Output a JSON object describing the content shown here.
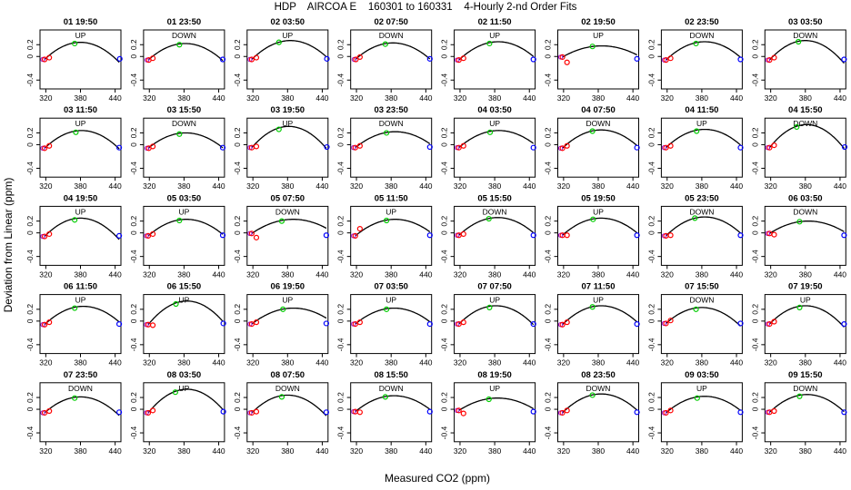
{
  "title": "HDP    AIRCOA E    160301 to 160331    4-Hourly 2-nd Order Fits",
  "xlabel": "Measured CO2 (ppm)",
  "ylabel": "Deviation from Linear (ppm)",
  "colors": {
    "curve": "#000000",
    "low_pt": "#ff0000",
    "mid_pt": "#00cc00",
    "high_pt": "#0000ff",
    "low_ref": "#9900cc",
    "box": "#000000"
  },
  "chart_data": {
    "type": "scatter",
    "xlim": [
      310,
      450
    ],
    "ylim": [
      -0.55,
      0.45
    ],
    "xticks": [
      320,
      380,
      440
    ],
    "xtick_labels": [
      "320",
      "380",
      "440"
    ],
    "yticks": [
      -0.4,
      0.0,
      0.2
    ],
    "ytick_labels": [
      "-0.4",
      "0",
      "0.2"
    ],
    "panels": [
      {
        "title": "01 19:50",
        "dir": "UP",
        "peak": 0.24,
        "vertex": 380,
        "pts": [
          [
            318,
            -0.05
          ],
          [
            326,
            -0.02
          ],
          [
            370,
            0.22
          ],
          [
            448,
            -0.04
          ]
        ]
      },
      {
        "title": "01 23:50",
        "dir": "DOWN",
        "peak": 0.22,
        "vertex": 382,
        "pts": [
          [
            319,
            -0.06
          ],
          [
            326,
            -0.03
          ],
          [
            372,
            0.2
          ],
          [
            447,
            -0.05
          ]
        ]
      },
      {
        "title": "02 03:50",
        "dir": "UP",
        "peak": 0.27,
        "vertex": 385,
        "pts": [
          [
            318,
            -0.05
          ],
          [
            326,
            -0.02
          ],
          [
            365,
            0.24
          ],
          [
            448,
            -0.04
          ]
        ]
      },
      {
        "title": "02 07:50",
        "dir": "DOWN",
        "peak": 0.23,
        "vertex": 383,
        "pts": [
          [
            319,
            -0.05
          ],
          [
            326,
            -0.01
          ],
          [
            370,
            0.21
          ],
          [
            447,
            -0.04
          ]
        ]
      },
      {
        "title": "02 11:50",
        "dir": "UP",
        "peak": 0.25,
        "vertex": 386,
        "pts": [
          [
            318,
            -0.06
          ],
          [
            326,
            -0.03
          ],
          [
            371,
            0.22
          ],
          [
            447,
            -0.05
          ]
        ]
      },
      {
        "title": "02 19:50",
        "dir": "UP",
        "peak": 0.18,
        "vertex": 386,
        "pts": [
          [
            318,
            -0.01
          ],
          [
            326,
            -0.1
          ],
          [
            370,
            0.17
          ],
          [
            447,
            -0.04
          ]
        ]
      },
      {
        "title": "02 23:50",
        "dir": "DOWN",
        "peak": 0.25,
        "vertex": 385,
        "pts": [
          [
            318,
            -0.06
          ],
          [
            326,
            -0.03
          ],
          [
            370,
            0.22
          ],
          [
            447,
            -0.05
          ]
        ]
      },
      {
        "title": "03 03:50",
        "dir": "DOWN",
        "peak": 0.27,
        "vertex": 380,
        "pts": [
          [
            318,
            -0.06
          ],
          [
            326,
            -0.02
          ],
          [
            368,
            0.25
          ],
          [
            447,
            -0.05
          ]
        ]
      },
      {
        "title": "03 11:50",
        "dir": "UP",
        "peak": 0.24,
        "vertex": 382,
        "pts": [
          [
            318,
            -0.06
          ],
          [
            326,
            -0.02
          ],
          [
            372,
            0.21
          ],
          [
            447,
            -0.05
          ]
        ]
      },
      {
        "title": "03 15:50",
        "dir": "DOWN",
        "peak": 0.2,
        "vertex": 383,
        "pts": [
          [
            319,
            -0.06
          ],
          [
            326,
            -0.03
          ],
          [
            372,
            0.18
          ],
          [
            447,
            -0.05
          ]
        ]
      },
      {
        "title": "03 19:50",
        "dir": "UP",
        "peak": 0.31,
        "vertex": 382,
        "pts": [
          [
            318,
            -0.05
          ],
          [
            326,
            -0.03
          ],
          [
            365,
            0.26
          ],
          [
            448,
            -0.04
          ]
        ]
      },
      {
        "title": "03 23:50",
        "dir": "DOWN",
        "peak": 0.22,
        "vertex": 387,
        "pts": [
          [
            318,
            -0.05
          ],
          [
            326,
            -0.02
          ],
          [
            372,
            0.2
          ],
          [
            447,
            -0.04
          ]
        ]
      },
      {
        "title": "04 03:50",
        "dir": "UP",
        "peak": 0.24,
        "vertex": 387,
        "pts": [
          [
            318,
            -0.05
          ],
          [
            326,
            -0.02
          ],
          [
            372,
            0.21
          ],
          [
            447,
            -0.05
          ]
        ]
      },
      {
        "title": "04 07:50",
        "dir": "DOWN",
        "peak": 0.25,
        "vertex": 385,
        "pts": [
          [
            318,
            -0.06
          ],
          [
            326,
            -0.02
          ],
          [
            370,
            0.23
          ],
          [
            447,
            -0.05
          ]
        ]
      },
      {
        "title": "04 11:50",
        "dir": "UP",
        "peak": 0.26,
        "vertex": 385,
        "pts": [
          [
            318,
            -0.05
          ],
          [
            326,
            -0.02
          ],
          [
            371,
            0.23
          ],
          [
            447,
            -0.05
          ]
        ]
      },
      {
        "title": "04 15:50",
        "dir": "DOWN",
        "peak": 0.34,
        "vertex": 382,
        "pts": [
          [
            318,
            -0.05
          ],
          [
            326,
            -0.01
          ],
          [
            365,
            0.3
          ],
          [
            448,
            -0.04
          ]
        ]
      },
      {
        "title": "04 19:50",
        "dir": "UP",
        "peak": 0.25,
        "vertex": 380,
        "pts": [
          [
            318,
            -0.06
          ],
          [
            326,
            -0.02
          ],
          [
            370,
            0.22
          ],
          [
            447,
            -0.05
          ]
        ]
      },
      {
        "title": "05 03:50",
        "dir": "UP",
        "peak": 0.23,
        "vertex": 384,
        "pts": [
          [
            318,
            -0.05
          ],
          [
            326,
            -0.02
          ],
          [
            372,
            0.21
          ],
          [
            447,
            -0.04
          ]
        ]
      },
      {
        "title": "05 07:50",
        "dir": "DOWN",
        "peak": 0.23,
        "vertex": 390,
        "pts": [
          [
            318,
            -0.01
          ],
          [
            326,
            -0.08
          ],
          [
            370,
            0.2
          ],
          [
            447,
            -0.04
          ]
        ]
      },
      {
        "title": "05 11:50",
        "dir": "UP",
        "peak": 0.23,
        "vertex": 387,
        "pts": [
          [
            318,
            -0.05
          ],
          [
            326,
            0.07
          ],
          [
            372,
            0.21
          ],
          [
            447,
            -0.04
          ]
        ]
      },
      {
        "title": "05 15:50",
        "dir": "DOWN",
        "peak": 0.26,
        "vertex": 385,
        "pts": [
          [
            318,
            -0.04
          ],
          [
            326,
            -0.02
          ],
          [
            370,
            0.24
          ],
          [
            447,
            -0.04
          ]
        ]
      },
      {
        "title": "05 19:50",
        "dir": "UP",
        "peak": 0.25,
        "vertex": 385,
        "pts": [
          [
            318,
            -0.04
          ],
          [
            326,
            -0.04
          ],
          [
            371,
            0.23
          ],
          [
            447,
            -0.04
          ]
        ]
      },
      {
        "title": "05 23:50",
        "dir": "DOWN",
        "peak": 0.27,
        "vertex": 385,
        "pts": [
          [
            318,
            -0.05
          ],
          [
            326,
            -0.04
          ],
          [
            368,
            0.25
          ],
          [
            447,
            -0.04
          ]
        ]
      },
      {
        "title": "06 03:50",
        "dir": "DOWN",
        "peak": 0.2,
        "vertex": 385,
        "pts": [
          [
            318,
            -0.01
          ],
          [
            326,
            -0.03
          ],
          [
            370,
            0.19
          ],
          [
            447,
            -0.04
          ]
        ]
      },
      {
        "title": "06 11:50",
        "dir": "UP",
        "peak": 0.25,
        "vertex": 385,
        "pts": [
          [
            318,
            -0.06
          ],
          [
            326,
            -0.02
          ],
          [
            370,
            0.22
          ],
          [
            447,
            -0.05
          ]
        ]
      },
      {
        "title": "06 15:50",
        "dir": "UP",
        "peak": 0.34,
        "vertex": 385,
        "pts": [
          [
            318,
            -0.06
          ],
          [
            326,
            -0.07
          ],
          [
            366,
            0.29
          ],
          [
            448,
            -0.04
          ]
        ]
      },
      {
        "title": "06 19:50",
        "dir": "UP",
        "peak": 0.22,
        "vertex": 390,
        "pts": [
          [
            318,
            -0.05
          ],
          [
            326,
            -0.02
          ],
          [
            372,
            0.2
          ],
          [
            447,
            -0.04
          ]
        ]
      },
      {
        "title": "07 03:50",
        "dir": "UP",
        "peak": 0.22,
        "vertex": 385,
        "pts": [
          [
            318,
            -0.05
          ],
          [
            326,
            -0.02
          ],
          [
            372,
            0.2
          ],
          [
            447,
            -0.05
          ]
        ]
      },
      {
        "title": "07 07:50",
        "dir": "UP",
        "peak": 0.26,
        "vertex": 382,
        "pts": [
          [
            318,
            -0.05
          ],
          [
            326,
            -0.02
          ],
          [
            371,
            0.23
          ],
          [
            447,
            -0.05
          ]
        ]
      },
      {
        "title": "07 11:50",
        "dir": "UP",
        "peak": 0.26,
        "vertex": 385,
        "pts": [
          [
            318,
            -0.06
          ],
          [
            326,
            -0.02
          ],
          [
            370,
            0.24
          ],
          [
            447,
            -0.05
          ]
        ]
      },
      {
        "title": "07 15:50",
        "dir": "DOWN",
        "peak": 0.23,
        "vertex": 380,
        "pts": [
          [
            318,
            -0.04
          ],
          [
            326,
            0.01
          ],
          [
            370,
            0.2
          ],
          [
            447,
            -0.04
          ]
        ]
      },
      {
        "title": "07 19:50",
        "dir": "UP",
        "peak": 0.26,
        "vertex": 380,
        "pts": [
          [
            318,
            -0.05
          ],
          [
            326,
            -0.01
          ],
          [
            370,
            0.23
          ],
          [
            447,
            -0.05
          ]
        ]
      },
      {
        "title": "07 23:50",
        "dir": "DOWN",
        "peak": 0.21,
        "vertex": 380,
        "pts": [
          [
            318,
            -0.06
          ],
          [
            326,
            -0.03
          ],
          [
            370,
            0.19
          ],
          [
            447,
            -0.05
          ]
        ]
      },
      {
        "title": "08 03:50",
        "dir": "UP",
        "peak": 0.34,
        "vertex": 385,
        "pts": [
          [
            318,
            -0.06
          ],
          [
            326,
            -0.02
          ],
          [
            365,
            0.29
          ],
          [
            448,
            -0.04
          ]
        ]
      },
      {
        "title": "08 07:50",
        "dir": "DOWN",
        "peak": 0.24,
        "vertex": 380,
        "pts": [
          [
            318,
            -0.06
          ],
          [
            326,
            -0.04
          ],
          [
            370,
            0.21
          ],
          [
            447,
            -0.05
          ]
        ]
      },
      {
        "title": "08 15:50",
        "dir": "DOWN",
        "peak": 0.23,
        "vertex": 385,
        "pts": [
          [
            318,
            -0.04
          ],
          [
            326,
            -0.05
          ],
          [
            370,
            0.21
          ],
          [
            447,
            -0.04
          ]
        ]
      },
      {
        "title": "08 19:50",
        "dir": "UP",
        "peak": 0.19,
        "vertex": 385,
        "pts": [
          [
            318,
            -0.02
          ],
          [
            326,
            -0.07
          ],
          [
            370,
            0.17
          ],
          [
            447,
            -0.04
          ]
        ]
      },
      {
        "title": "08 23:50",
        "dir": "DOWN",
        "peak": 0.26,
        "vertex": 385,
        "pts": [
          [
            318,
            -0.06
          ],
          [
            326,
            -0.02
          ],
          [
            370,
            0.24
          ],
          [
            447,
            -0.05
          ]
        ]
      },
      {
        "title": "09 03:50",
        "dir": "UP",
        "peak": 0.22,
        "vertex": 385,
        "pts": [
          [
            318,
            -0.06
          ],
          [
            326,
            -0.02
          ],
          [
            372,
            0.19
          ],
          [
            447,
            -0.05
          ]
        ]
      },
      {
        "title": "09 15:50",
        "dir": "DOWN",
        "peak": 0.25,
        "vertex": 383,
        "pts": [
          [
            318,
            -0.05
          ],
          [
            326,
            -0.03
          ],
          [
            370,
            0.22
          ],
          [
            447,
            -0.05
          ]
        ]
      }
    ]
  }
}
